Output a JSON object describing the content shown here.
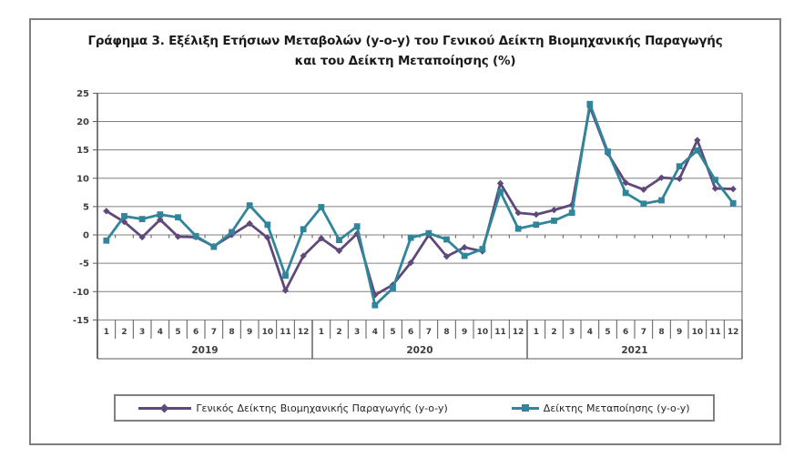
{
  "title": {
    "line1": "Γράφημα 3. Εξέλιξη Ετήσιων Μεταβολών (y-o-y) του Γενικού Δείκτη Βιομηχανικής Παραγωγής",
    "line2": "και του Δείκτη Μεταποίησης (%)"
  },
  "chart_data": {
    "type": "line",
    "grid": true,
    "legend_position": "bottom",
    "ylim": [
      -15,
      25
    ],
    "yticks": [
      25,
      20,
      15,
      10,
      5,
      0,
      -5,
      -10,
      -15
    ],
    "x_groups": [
      {
        "year": "2019",
        "months": [
          "1",
          "2",
          "3",
          "4",
          "5",
          "6",
          "7",
          "8",
          "9",
          "10",
          "11",
          "12"
        ]
      },
      {
        "year": "2020",
        "months": [
          "1",
          "2",
          "3",
          "4",
          "5",
          "6",
          "7",
          "8",
          "9",
          "10",
          "11",
          "12"
        ]
      },
      {
        "year": "2021",
        "months": [
          "1",
          "2",
          "3",
          "4",
          "5",
          "6",
          "7",
          "8",
          "9",
          "10",
          "11",
          "12"
        ]
      }
    ],
    "series": [
      {
        "name": "Γενικός Δείκτης Βιομηχανικής Παραγωγής (y-o-y)",
        "color": "#5f497a",
        "marker": "diamond",
        "values": [
          4.2,
          2.3,
          -0.4,
          2.7,
          -0.3,
          -0.4,
          -2.0,
          0.0,
          2.0,
          -0.5,
          -9.8,
          -3.7,
          -0.6,
          -2.8,
          0.2,
          -10.6,
          -8.8,
          -4.9,
          0.0,
          -3.8,
          -2.2,
          -2.9,
          9.1,
          3.9,
          3.6,
          4.4,
          5.3,
          22.6,
          14.4,
          9.2,
          8.0,
          10.1,
          9.9,
          16.7,
          8.2,
          8.1
        ]
      },
      {
        "name": "Δείκτης Μεταποίησης (y-o-y)",
        "color": "#31859b",
        "marker": "square",
        "values": [
          -1.0,
          3.3,
          2.8,
          3.6,
          3.1,
          -0.2,
          -2.1,
          0.5,
          5.2,
          1.8,
          -7.2,
          1.0,
          4.9,
          -0.9,
          1.5,
          -12.4,
          -9.4,
          -0.5,
          0.3,
          -0.8,
          -3.7,
          -2.5,
          7.6,
          1.1,
          1.8,
          2.5,
          3.9,
          23.1,
          14.7,
          7.4,
          5.5,
          6.1,
          12.1,
          14.9,
          9.7,
          5.6
        ]
      }
    ],
    "colors": {
      "gridline": "#808080",
      "axis": "#595959",
      "tick_label": "#3f3f3f"
    }
  }
}
